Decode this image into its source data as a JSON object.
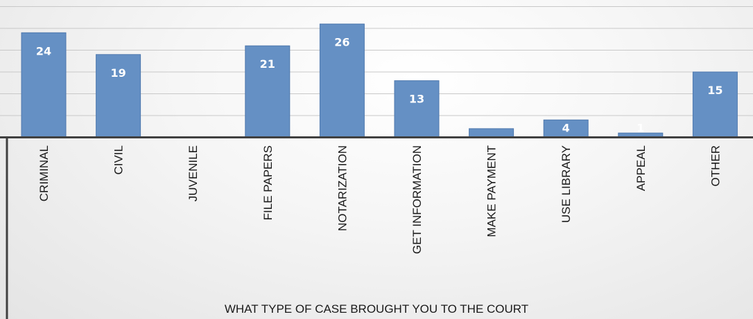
{
  "chart_data": {
    "type": "bar",
    "title": "",
    "xlabel": "WHAT TYPE OF CASE BROUGHT YOU TO THE COURT",
    "ylabel": "",
    "categories": [
      "CRIMINAL",
      "CIVIL",
      "JUVENILE",
      "FILE PAPERS",
      "NOTARIZATION",
      "GET INFORMATION",
      "MAKE PAYMENT",
      "USE LIBRARY",
      "APPEAL",
      "OTHER"
    ],
    "values": [
      24,
      19,
      0,
      21,
      26,
      13,
      2,
      4,
      1,
      15
    ],
    "data_labels": [
      "24",
      "19",
      "",
      "21",
      "26",
      "13",
      "",
      "4",
      "1",
      "15"
    ],
    "ylim": [
      0,
      30
    ],
    "grid": true,
    "legend": "none",
    "colors": {
      "bar": "#6590c4",
      "bar_edge": "#4f79ae",
      "grid": "#c8c8c8",
      "axis": "#404040"
    }
  }
}
